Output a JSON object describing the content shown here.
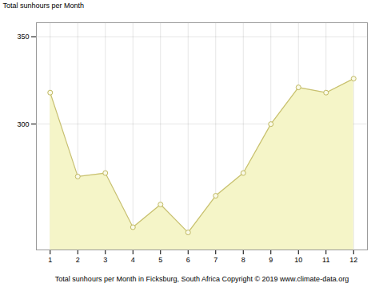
{
  "chart_data": {
    "type": "area",
    "x": [
      1,
      2,
      3,
      4,
      5,
      6,
      7,
      8,
      9,
      10,
      11,
      12
    ],
    "values": [
      318,
      270,
      272,
      241,
      254,
      238,
      259,
      272,
      300,
      321,
      318,
      326
    ],
    "color": "#C8C070",
    "marker": "circle",
    "xlabel": "Total sunhours per Month in Ficksburg, South Africa Copyright © 2019 www.climate-data.org",
    "ylabel": "Total sunhours per Month",
    "xlim": [
      0.5,
      12.5
    ],
    "xticks": [
      1,
      2,
      3,
      4,
      5,
      6,
      7,
      8,
      9,
      10,
      11,
      12
    ],
    "ylim": [
      228,
      358
    ],
    "yticks": [
      300,
      350
    ],
    "grid": true
  }
}
